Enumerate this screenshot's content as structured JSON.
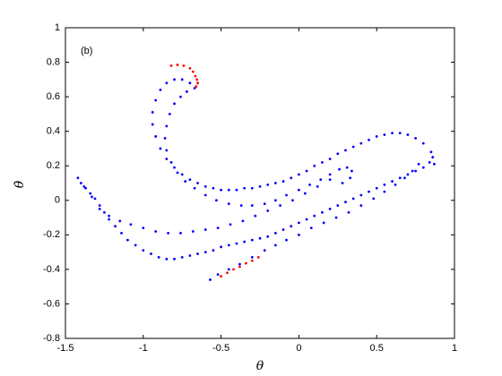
{
  "chart_data": {
    "type": "scatter",
    "annotation": "(b)",
    "x_label": "θ",
    "y_label": "θ̇",
    "xlim": [
      -1.5,
      1
    ],
    "ylim": [
      -0.8,
      1
    ],
    "xticks": [
      -1.5,
      -1,
      -0.5,
      0,
      0.5,
      1
    ],
    "yticks": [
      -0.8,
      -0.6,
      -0.4,
      -0.2,
      0,
      0.2,
      0.4,
      0.6,
      0.8,
      1
    ],
    "series": [
      {
        "color": "#0000ff",
        "x": [
          -1.42,
          -1.4,
          -1.37,
          -1.34,
          -1.31,
          -1.28,
          -1.25,
          -1.22,
          -1.18,
          -1.14,
          -1.1,
          -1.05,
          -1.0,
          -0.95,
          -0.9,
          -0.85,
          -0.8,
          -0.75,
          -0.7,
          -0.65,
          -0.6,
          -0.55,
          -0.5,
          -0.45,
          -0.4,
          -0.35,
          -0.3,
          -0.25,
          -0.2,
          -0.15,
          -0.1,
          -0.05,
          0.0,
          0.05,
          0.1,
          0.15,
          0.2,
          0.25,
          0.3,
          0.35,
          0.4,
          0.45,
          0.5,
          0.55,
          0.6,
          0.65,
          0.7,
          0.75,
          0.8,
          0.84,
          0.86,
          0.87
        ],
        "values": [
          0.13,
          0.1,
          0.07,
          0.04,
          0.01,
          -0.03,
          -0.07,
          -0.11,
          -0.15,
          -0.19,
          -0.23,
          -0.26,
          -0.29,
          -0.31,
          -0.33,
          -0.34,
          -0.34,
          -0.33,
          -0.32,
          -0.31,
          -0.3,
          -0.29,
          -0.27,
          -0.26,
          -0.25,
          -0.24,
          -0.23,
          -0.22,
          -0.21,
          -0.19,
          -0.17,
          -0.15,
          -0.13,
          -0.11,
          -0.09,
          -0.07,
          -0.05,
          -0.03,
          -0.01,
          0.01,
          0.03,
          0.05,
          0.07,
          0.09,
          0.11,
          0.13,
          0.15,
          0.17,
          0.19,
          0.22,
          0.25,
          0.21
        ]
      },
      {
        "color": "#0000ff",
        "x": [
          0.85,
          0.8,
          0.75,
          0.7,
          0.65,
          0.6,
          0.55,
          0.5,
          0.45,
          0.4,
          0.35,
          0.3,
          0.25,
          0.2,
          0.15,
          0.1,
          0.05,
          0.0,
          -0.05,
          -0.1,
          -0.15,
          -0.2,
          -0.25,
          -0.3,
          -0.35,
          -0.4,
          -0.45,
          -0.5,
          -0.55,
          -0.6,
          -0.65,
          -0.7,
          -0.75,
          -0.8,
          -0.85,
          -0.89,
          -0.92,
          -0.94,
          -0.94,
          -0.92,
          -0.89,
          -0.85,
          -0.8,
          -0.75,
          -0.7,
          -0.67
        ],
        "values": [
          0.28,
          0.33,
          0.36,
          0.38,
          0.39,
          0.39,
          0.38,
          0.37,
          0.35,
          0.33,
          0.31,
          0.29,
          0.27,
          0.24,
          0.22,
          0.2,
          0.17,
          0.15,
          0.13,
          0.11,
          0.1,
          0.09,
          0.08,
          0.07,
          0.07,
          0.06,
          0.06,
          0.06,
          0.07,
          0.08,
          0.1,
          0.12,
          0.15,
          0.19,
          0.24,
          0.3,
          0.37,
          0.44,
          0.51,
          0.58,
          0.64,
          0.68,
          0.7,
          0.7,
          0.68,
          0.65
        ]
      },
      {
        "color": "#0000ff",
        "x": [
          -0.72,
          -0.76,
          -0.8,
          -0.83,
          -0.85,
          -0.86,
          -0.85,
          -0.82,
          -0.78,
          -0.73,
          -0.67,
          -0.6,
          -0.53,
          -0.45,
          -0.37,
          -0.3,
          -0.22,
          -0.15,
          -0.08,
          0.0,
          0.07,
          0.14,
          0.2,
          0.26,
          0.31,
          0.34,
          0.33,
          0.28
        ],
        "values": [
          0.63,
          0.6,
          0.56,
          0.5,
          0.43,
          0.36,
          0.29,
          0.22,
          0.16,
          0.11,
          0.07,
          0.03,
          0.0,
          -0.02,
          -0.03,
          -0.03,
          -0.02,
          0.0,
          0.03,
          0.06,
          0.09,
          0.12,
          0.15,
          0.18,
          0.19,
          0.17,
          0.13,
          0.1
        ]
      },
      {
        "color": "#0000ff",
        "x": [
          -0.57,
          -0.52,
          -0.45,
          -0.38,
          -0.3,
          -0.22,
          -0.15,
          -0.08,
          0.0,
          0.08,
          0.16,
          0.24,
          0.32,
          0.4,
          0.48,
          0.55,
          0.62,
          0.68,
          0.73,
          0.77
        ],
        "values": [
          -0.46,
          -0.43,
          -0.4,
          -0.37,
          -0.33,
          -0.29,
          -0.26,
          -0.23,
          -0.2,
          -0.16,
          -0.13,
          -0.1,
          -0.07,
          -0.03,
          0.01,
          0.05,
          0.09,
          0.13,
          0.17,
          0.21
        ]
      },
      {
        "color": "#0000ff",
        "x": [
          -1.38,
          -1.33,
          -1.28,
          -1.22,
          -1.15,
          -1.08,
          -1.0,
          -0.92,
          -0.84,
          -0.76,
          -0.68,
          -0.6,
          -0.52,
          -0.44,
          -0.36,
          -0.28,
          -0.2,
          -0.12,
          -0.04,
          0.04,
          0.12,
          0.2
        ],
        "values": [
          0.08,
          0.02,
          -0.05,
          -0.09,
          -0.12,
          -0.14,
          -0.16,
          -0.18,
          -0.19,
          -0.19,
          -0.18,
          -0.17,
          -0.16,
          -0.14,
          -0.12,
          -0.09,
          -0.06,
          -0.03,
          0.0,
          0.04,
          0.08,
          0.12
        ]
      },
      {
        "color": "#ff0000",
        "x": [
          -0.82,
          -0.78,
          -0.74,
          -0.7,
          -0.68,
          -0.665,
          -0.655,
          -0.65,
          -0.66
        ],
        "values": [
          0.78,
          0.785,
          0.78,
          0.765,
          0.745,
          0.72,
          0.7,
          0.68,
          0.66
        ]
      },
      {
        "color": "#ff0000",
        "x": [
          -0.5,
          -0.46,
          -0.42,
          -0.38,
          -0.34,
          -0.3,
          -0.26
        ],
        "values": [
          -0.44,
          -0.42,
          -0.4,
          -0.385,
          -0.365,
          -0.35,
          -0.33
        ]
      }
    ]
  }
}
